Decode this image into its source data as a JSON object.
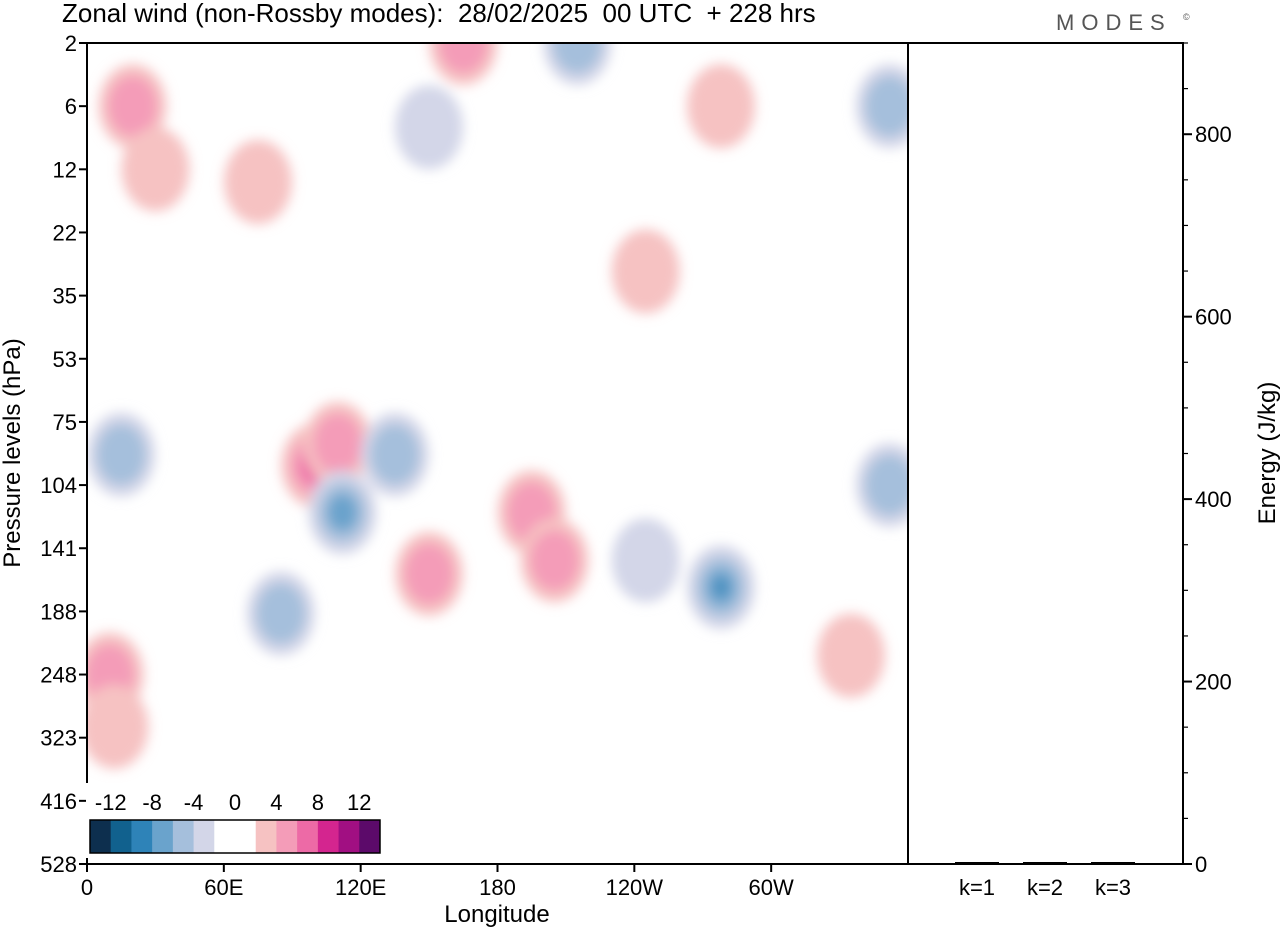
{
  "title": "Zonal wind (non-Rossby modes):  28/02/2025  00 UTC  + 228 hrs",
  "logo": {
    "text": "MODES",
    "mark": "©"
  },
  "chart_data": [
    {
      "type": "heatmap",
      "xlabel": "Longitude",
      "ylabel": "Pressure levels (hPa)",
      "x_tick_labels": [
        "0",
        "60E",
        "120E",
        "180",
        "120W",
        "60W"
      ],
      "y_tick_labels": [
        "2",
        "6",
        "12",
        "22",
        "35",
        "53",
        "75",
        "104",
        "141",
        "188",
        "248",
        "323",
        "416",
        "528"
      ],
      "colorbar": {
        "labels": [
          "-12",
          "-8",
          "-4",
          "0",
          "4",
          "8",
          "12"
        ],
        "colors": [
          "#0d2f4e",
          "#11618e",
          "#2e83b8",
          "#6aa3cc",
          "#a5bfdc",
          "#d3d6e8",
          "#ffffff",
          "#ffffff",
          "#f6c2c2",
          "#f49cb8",
          "#ed6aa6",
          "#d4258f",
          "#a10f82",
          "#5c0a6a"
        ]
      },
      "positive_regions": [
        {
          "lon": 10,
          "lev": 248,
          "level": 2
        },
        {
          "lon": 12,
          "lev": 310,
          "level": 1
        },
        {
          "lon": 20,
          "lev": 6,
          "level": 2
        },
        {
          "lon": 30,
          "lev": 12,
          "level": 1
        },
        {
          "lon": 75,
          "lev": 14,
          "level": 1
        },
        {
          "lon": 100,
          "lev": 95,
          "level": 3
        },
        {
          "lon": 110,
          "lev": 85,
          "level": 2
        },
        {
          "lon": 150,
          "lev": 160,
          "level": 2
        },
        {
          "lon": 165,
          "lev": 2,
          "level": 2
        },
        {
          "lon": 195,
          "lev": 120,
          "level": 2
        },
        {
          "lon": 205,
          "lev": 150,
          "level": 2
        },
        {
          "lon": 245,
          "lev": 30,
          "level": 1
        },
        {
          "lon": 278,
          "lev": 6,
          "level": 1
        },
        {
          "lon": 335,
          "lev": 230,
          "level": 1
        }
      ],
      "negative_regions": [
        {
          "lon": 15,
          "lev": 90,
          "level": 2
        },
        {
          "lon": 85,
          "lev": 190,
          "level": 2
        },
        {
          "lon": 112,
          "lev": 120,
          "level": 3
        },
        {
          "lon": 135,
          "lev": 90,
          "level": 2
        },
        {
          "lon": 150,
          "lev": 8,
          "level": 1
        },
        {
          "lon": 215,
          "lev": 2,
          "level": 2
        },
        {
          "lon": 245,
          "lev": 150,
          "level": 1
        },
        {
          "lon": 278,
          "lev": 170,
          "level": 4
        },
        {
          "lon": 352,
          "lev": 6,
          "level": 2
        },
        {
          "lon": 352,
          "lev": 104,
          "level": 2
        }
      ]
    },
    {
      "type": "bar",
      "categories": [
        "k=1",
        "k=2",
        "k=3"
      ],
      "values": [
        1.5,
        1.5,
        1.5
      ],
      "ylabel": "Energy (J/kg)",
      "ylim": [
        0,
        900
      ],
      "y_tick_labels": [
        "0",
        "200",
        "400",
        "600",
        "800"
      ]
    }
  ]
}
